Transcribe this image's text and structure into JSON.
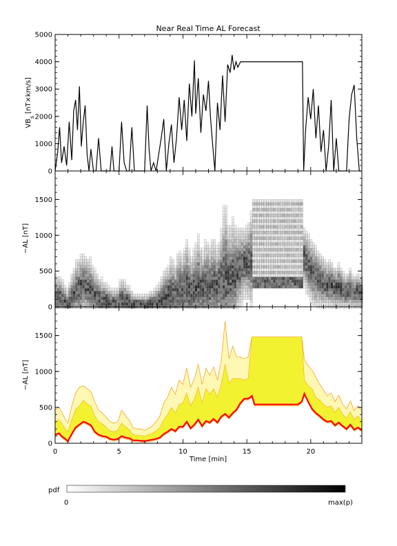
{
  "figure": {
    "title": "Near Real Time AL Forecast",
    "xlabel": "Time [min]",
    "pdf_label": "pdf",
    "pdf_min": "0",
    "pdf_max": "max(p)"
  },
  "colors": {
    "axes": "#000000",
    "vbs_line": "#000000",
    "median_line": "#ff0000",
    "band_inner": "#f2f230",
    "band_outer": "#fff7b4",
    "band_edge": "#f5a623"
  },
  "chart_data": [
    {
      "type": "line",
      "name": "vbs-panel",
      "ylabel_main": "VB",
      "ylabel_sub": "s",
      "ylabel_unit": "[nT×km/s]",
      "xlim": [
        0,
        24
      ],
      "ylim": [
        0,
        5000
      ],
      "yticks": [
        0,
        1000,
        2000,
        3000,
        4000,
        5000
      ],
      "x": [
        0,
        0.2,
        0.35,
        0.5,
        0.7,
        0.9,
        1.1,
        1.3,
        1.45,
        1.6,
        1.75,
        1.9,
        2.05,
        2.2,
        2.35,
        2.5,
        2.65,
        2.8,
        3.0,
        3.2,
        3.4,
        3.6,
        3.75,
        3.9,
        4.1,
        4.3,
        4.45,
        4.6,
        4.8,
        5.0,
        5.2,
        5.4,
        5.6,
        5.8,
        6.0,
        6.2,
        6.4,
        6.6,
        6.8,
        7.0,
        7.2,
        7.35,
        7.5,
        7.7,
        7.9,
        8.1,
        8.3,
        8.5,
        8.7,
        8.9,
        9.1,
        9.3,
        9.5,
        9.7,
        9.9,
        10.1,
        10.3,
        10.5,
        10.7,
        10.9,
        11.0,
        11.2,
        11.4,
        11.6,
        11.8,
        12.0,
        12.15,
        12.3,
        12.5,
        12.7,
        12.9,
        13.1,
        13.3,
        13.5,
        13.7,
        13.85,
        14.0,
        14.15,
        14.3,
        14.5,
        14.8,
        16.0,
        17.0,
        18.0,
        19.35,
        19.45,
        19.6,
        19.8,
        20.0,
        20.2,
        20.4,
        20.6,
        20.8,
        21.0,
        21.2,
        21.4,
        21.6,
        21.8,
        22.0,
        22.2,
        22.4,
        22.6,
        22.8,
        23.0,
        23.2,
        23.4,
        23.6,
        23.8,
        24.0
      ],
      "values": [
        0,
        700,
        1600,
        300,
        900,
        200,
        1800,
        400,
        2200,
        2600,
        1500,
        3100,
        900,
        1800,
        2400,
        600,
        0,
        800,
        0,
        0,
        1200,
        0,
        0,
        0,
        0,
        0,
        900,
        0,
        0,
        0,
        1800,
        300,
        0,
        0,
        1600,
        0,
        0,
        0,
        0,
        0,
        2400,
        800,
        0,
        300,
        0,
        600,
        1200,
        1900,
        0,
        1000,
        1700,
        300,
        1200,
        2700,
        1500,
        2600,
        1100,
        3200,
        2000,
        4050,
        2100,
        3400,
        1400,
        2800,
        2200,
        3300,
        2000,
        1100,
        0,
        2500,
        1500,
        3500,
        1800,
        3900,
        3600,
        4250,
        3700,
        4000,
        3800,
        4000,
        4000,
        4000,
        4000,
        4000,
        4000,
        0,
        1500,
        2700,
        1900,
        3000,
        1200,
        2400,
        700,
        1500,
        0,
        900,
        2600,
        0,
        1200,
        0,
        0,
        0,
        0,
        1900,
        2800,
        3150,
        1200,
        0,
        0
      ],
      "axis_left_ticks": [
        "0",
        "1000",
        "2000",
        "3000",
        "4000",
        "5000"
      ],
      "xticks": [
        0,
        5,
        10,
        15,
        20
      ]
    },
    {
      "type": "heatmap",
      "name": "pdf-panel",
      "ylabel": "−AL [nT]",
      "xlim": [
        0,
        24
      ],
      "ylim": [
        0,
        1900
      ],
      "yticks": [
        0,
        500,
        1000,
        1500
      ],
      "axis_left_ticks": [
        "0",
        "500",
        "1000",
        "1500"
      ],
      "xticks": [
        0,
        5,
        10,
        15,
        20
      ]
    },
    {
      "type": "area",
      "name": "forecast-panel",
      "ylabel": "−AL [nT]",
      "xlim": [
        0,
        24
      ],
      "ylim": [
        0,
        1900
      ],
      "yticks": [
        0,
        500,
        1000,
        1500
      ],
      "axis_left_ticks": [
        "0",
        "500",
        "1000",
        "1500"
      ],
      "xticks": [
        0,
        5,
        10,
        15,
        20
      ],
      "xtick_labels": [
        "0",
        "5",
        "10",
        "15",
        "20"
      ],
      "x": [
        0,
        0.3,
        0.5,
        0.8,
        1.0,
        1.3,
        1.6,
        1.9,
        2.2,
        2.5,
        2.8,
        3.1,
        3.4,
        3.7,
        4.0,
        4.3,
        4.6,
        4.9,
        5.2,
        5.5,
        5.8,
        6.1,
        6.4,
        6.7,
        7.0,
        7.3,
        7.6,
        7.9,
        8.2,
        8.5,
        8.8,
        9.1,
        9.4,
        9.7,
        10.0,
        10.3,
        10.6,
        10.9,
        11.2,
        11.5,
        11.8,
        12.1,
        12.4,
        12.7,
        13.0,
        13.3,
        13.6,
        13.9,
        14.2,
        14.5,
        14.8,
        15.1,
        15.4,
        15.6,
        16.0,
        17.0,
        18.0,
        19.0,
        19.3,
        19.5,
        19.8,
        20.1,
        20.4,
        20.7,
        21.0,
        21.3,
        21.6,
        21.9,
        22.2,
        22.5,
        22.8,
        23.1,
        23.4,
        23.7,
        24.0
      ],
      "median": [
        120,
        140,
        100,
        60,
        30,
        130,
        220,
        260,
        300,
        280,
        250,
        160,
        120,
        100,
        90,
        60,
        50,
        60,
        100,
        80,
        70,
        40,
        40,
        35,
        30,
        40,
        50,
        60,
        80,
        130,
        160,
        200,
        170,
        230,
        230,
        300,
        210,
        260,
        330,
        240,
        310,
        290,
        340,
        290,
        370,
        410,
        360,
        420,
        470,
        560,
        620,
        620,
        660,
        540,
        540,
        540,
        540,
        540,
        580,
        690,
        580,
        480,
        420,
        380,
        330,
        300,
        310,
        250,
        290,
        240,
        200,
        260,
        190,
        220,
        180
      ],
      "inner_upper": [
        300,
        330,
        280,
        200,
        160,
        330,
        470,
        520,
        600,
        550,
        520,
        380,
        300,
        270,
        220,
        170,
        160,
        180,
        280,
        230,
        190,
        120,
        110,
        110,
        100,
        120,
        140,
        170,
        220,
        330,
        400,
        500,
        420,
        540,
        560,
        700,
        520,
        620,
        780,
        560,
        760,
        680,
        760,
        640,
        820,
        1100,
        840,
        900,
        900,
        900,
        880,
        900,
        1480,
        1480,
        1480,
        1480,
        1480,
        1480,
        1480,
        880,
        800,
        760,
        640,
        600,
        540,
        500,
        520,
        430,
        500,
        400,
        350,
        440,
        330,
        380,
        320
      ],
      "outer_upper": [
        470,
        500,
        440,
        330,
        280,
        520,
        700,
        780,
        800,
        760,
        720,
        580,
        460,
        420,
        360,
        300,
        280,
        300,
        460,
        390,
        320,
        220,
        200,
        200,
        180,
        210,
        240,
        300,
        380,
        560,
        640,
        780,
        680,
        880,
        820,
        1050,
        780,
        900,
        1100,
        820,
        1040,
        950,
        1060,
        880,
        1150,
        1700,
        1180,
        1350,
        1200,
        1200,
        1180,
        1200,
        1480,
        1480,
        1480,
        1480,
        1480,
        1480,
        1480,
        1160,
        1080,
        1020,
        920,
        820,
        740,
        660,
        700,
        580,
        670,
        540,
        480,
        590,
        460,
        520,
        450
      ]
    }
  ]
}
